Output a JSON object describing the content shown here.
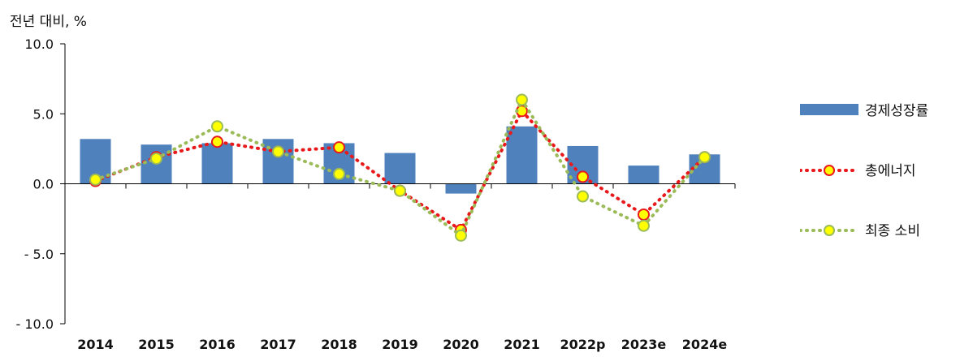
{
  "unit_label": "전년 대비, %",
  "colors": {
    "bar": "#4F81BD",
    "total_energy_line": "#E8191B",
    "total_energy_marker_fill": "#FFFF00",
    "final_consumption_line": "#9BBB59",
    "final_consumption_marker_fill": "#FFFF00",
    "axis": "#000000"
  },
  "chart_data": {
    "type": "bar",
    "title": "",
    "xlabel": "",
    "ylabel": "전년 대비, %",
    "ylim": [
      -10,
      10
    ],
    "yticks": [
      10,
      5,
      0,
      -5,
      -10
    ],
    "ytick_labels": [
      "10.0",
      "5.0",
      "0.0",
      "- 5.0",
      "- 10.0"
    ],
    "categories": [
      "2014",
      "2015",
      "2016",
      "2017",
      "2018",
      "2019",
      "2020",
      "2021",
      "2022p",
      "2023e",
      "2024e"
    ],
    "series": [
      {
        "name": "경제성장률",
        "type": "bar",
        "values": [
          3.2,
          2.8,
          2.9,
          3.2,
          2.9,
          2.2,
          -0.7,
          4.1,
          2.7,
          1.3,
          2.1
        ]
      },
      {
        "name": "총에너지",
        "type": "line",
        "style": "dotted",
        "values": [
          0.2,
          1.9,
          3.0,
          2.3,
          2.6,
          -0.5,
          -3.3,
          5.2,
          0.5,
          -2.2,
          1.9
        ]
      },
      {
        "name": "최종 소비",
        "type": "line",
        "style": "dotted",
        "values": [
          0.3,
          1.8,
          4.1,
          2.3,
          0.7,
          -0.5,
          -3.7,
          6.0,
          -0.9,
          -3.0,
          1.9
        ]
      }
    ],
    "legend_position": "right",
    "grid": false
  }
}
